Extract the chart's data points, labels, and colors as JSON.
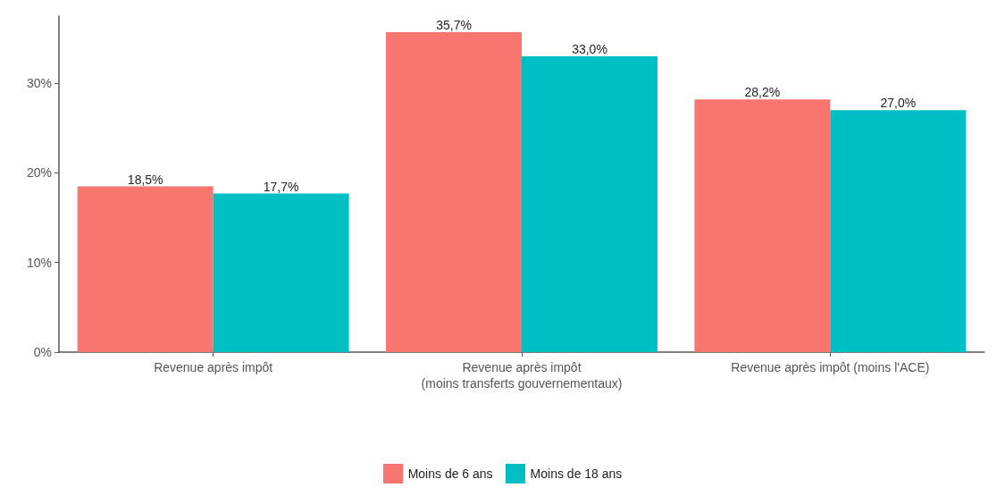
{
  "chart_data": {
    "type": "bar",
    "categories": [
      "Revenue après impôt",
      "Revenue après impôt\n(moins transferts gouvernementaux)",
      "Revenue après impôt (moins l'ACE)"
    ],
    "series": [
      {
        "name": "Moins de 6 ans",
        "color": "#f8766d",
        "values": [
          18.5,
          35.7,
          28.2
        ],
        "value_labels": [
          "18,5%",
          "35,7%",
          "28,2%"
        ]
      },
      {
        "name": "Moins de 18 ans",
        "color": "#00bfc4",
        "values": [
          17.7,
          33.0,
          27.0
        ],
        "value_labels": [
          "17,7%",
          "33,0%",
          "27,0%"
        ]
      }
    ],
    "ylim": [
      0,
      37.5
    ],
    "yticks": [
      {
        "value": 0,
        "label": "0%"
      },
      {
        "value": 10,
        "label": "10%"
      },
      {
        "value": 20,
        "label": "20%"
      },
      {
        "value": 30,
        "label": "30%"
      }
    ],
    "grid": false,
    "legend": "bottom"
  }
}
